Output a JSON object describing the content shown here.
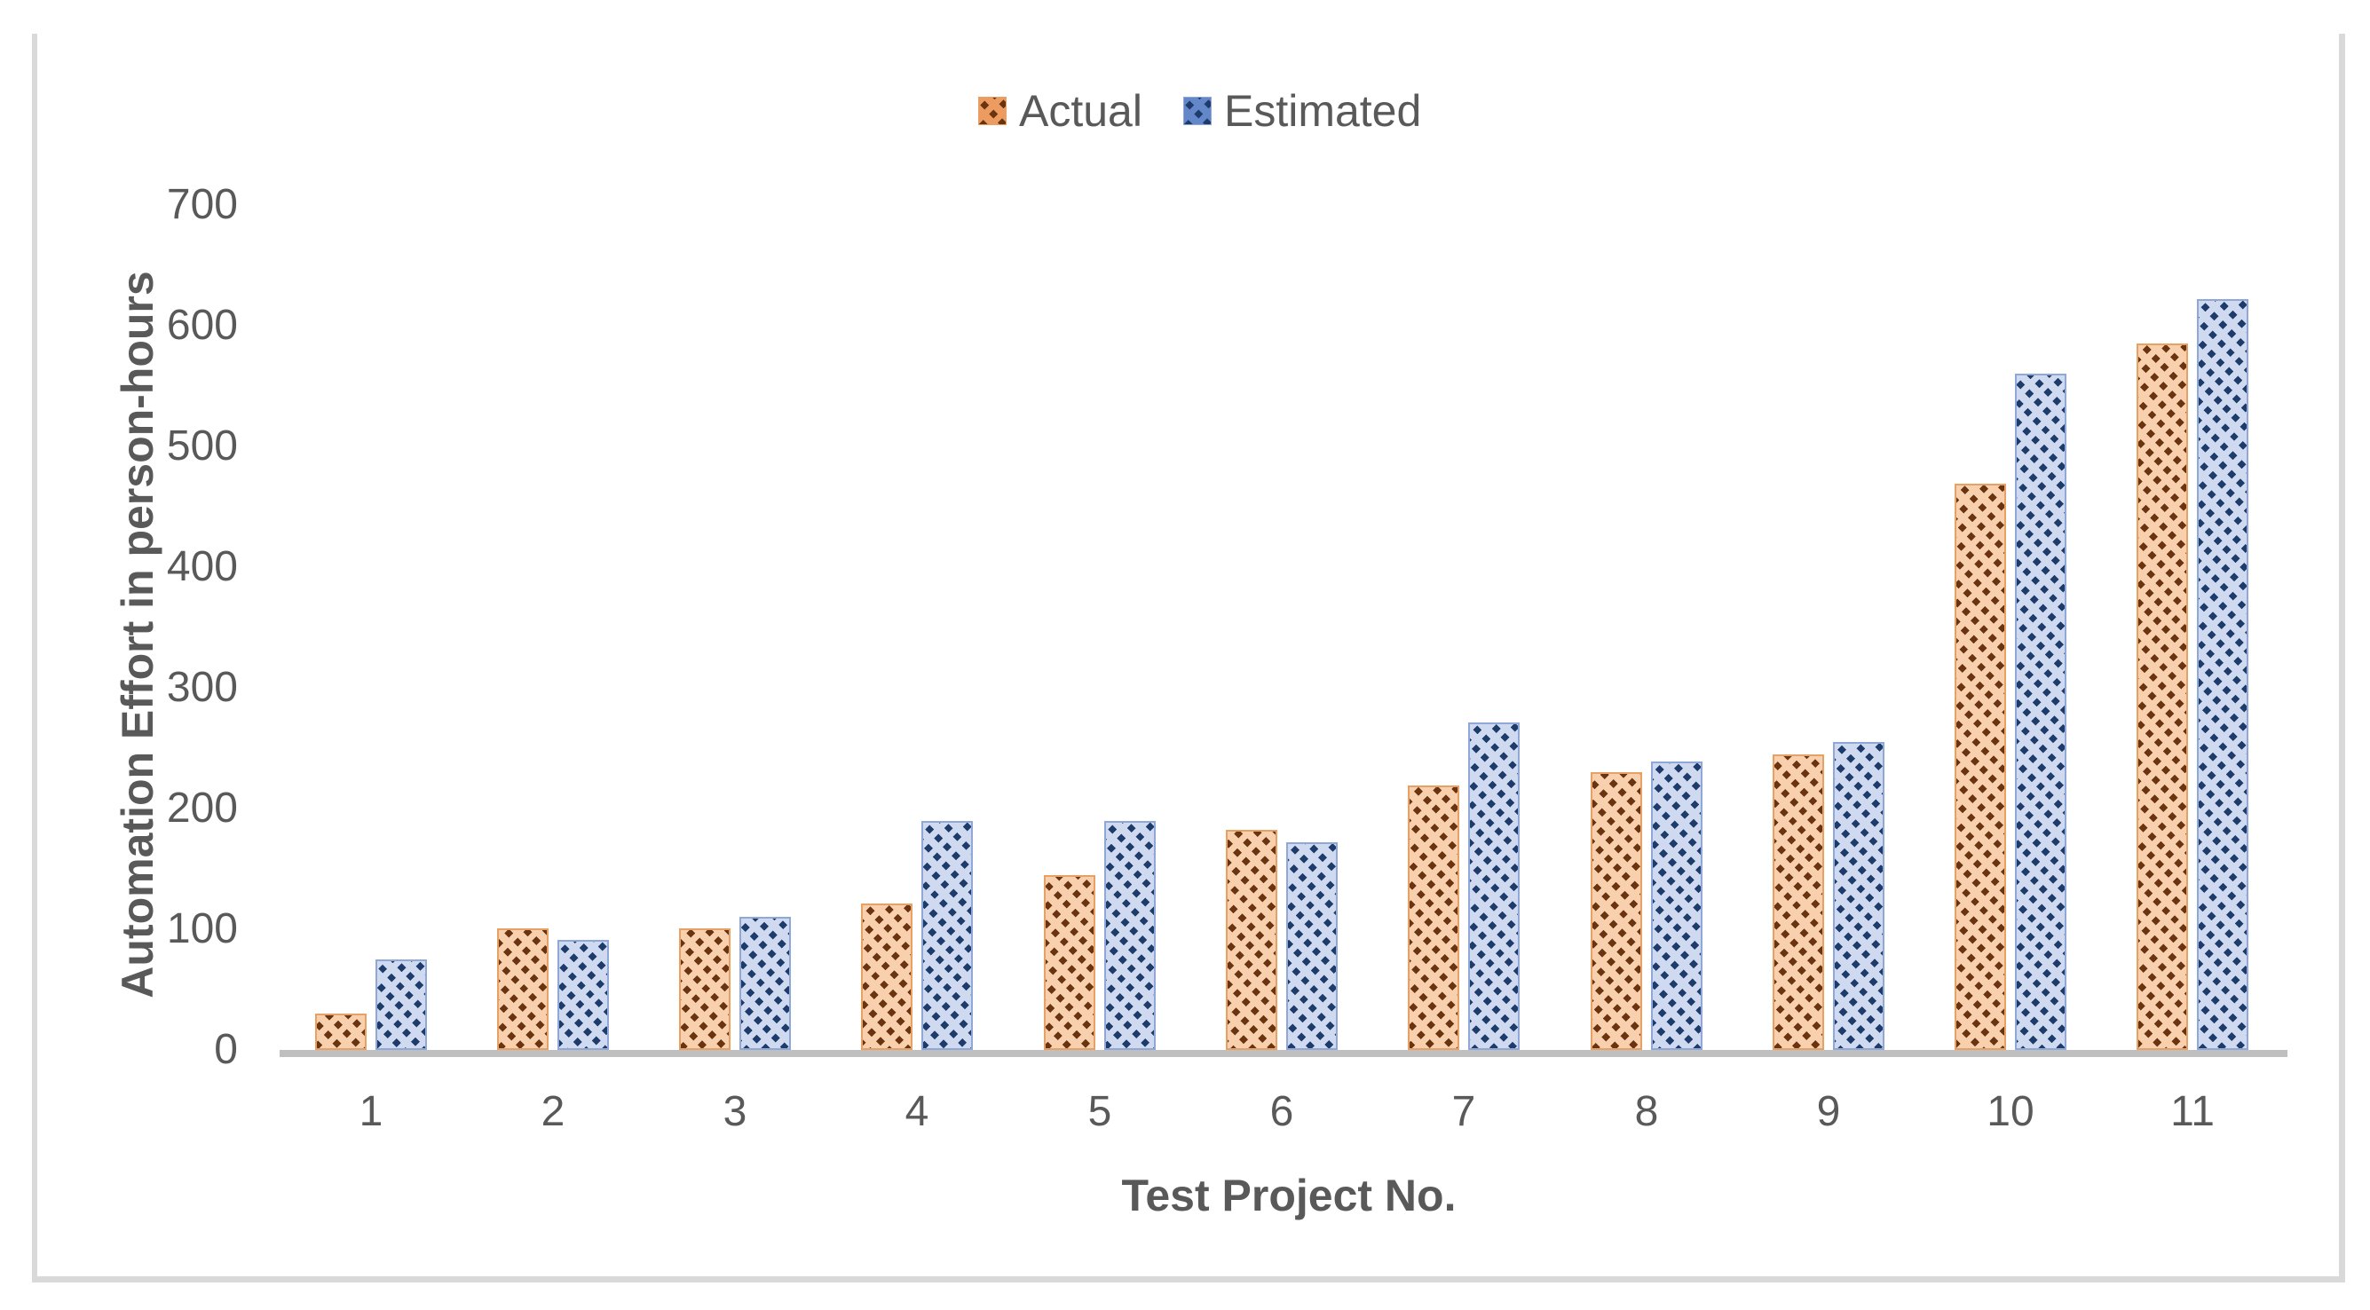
{
  "chart_data": {
    "type": "bar",
    "title": "",
    "categories": [
      "1",
      "2",
      "3",
      "4",
      "5",
      "6",
      "7",
      "8",
      "9",
      "10",
      "11"
    ],
    "series": [
      {
        "name": "Actual",
        "values": [
          30,
          101,
          101,
          121,
          145,
          182,
          219,
          230,
          245,
          469,
          585
        ],
        "fill": "#F8D0AE",
        "hatch": "#6B3410",
        "border": "#E8A164",
        "legend_fill": "#EC9C61",
        "pattern": "dashed-upward-diagonal"
      },
      {
        "name": "Estimated",
        "values": [
          75,
          91,
          110,
          190,
          190,
          172,
          271,
          239,
          255,
          560,
          622
        ],
        "fill": "#CFDAF0",
        "hatch": "#1E3C6B",
        "border": "#8FA8D8",
        "legend_fill": "#6487C9",
        "pattern": "dashed-upward-diagonal"
      }
    ],
    "xlabel": "Test Project No.",
    "ylabel": "Automation Effort in person-hours",
    "ylim": [
      0,
      700
    ],
    "yticks": [
      0,
      100,
      200,
      300,
      400,
      500,
      600,
      700
    ],
    "grid": false,
    "legend_position": "top-center",
    "axis_text_color": "#595959",
    "axis_line_color": "#BFBFBF",
    "frame_color": "#D9D9D9"
  }
}
